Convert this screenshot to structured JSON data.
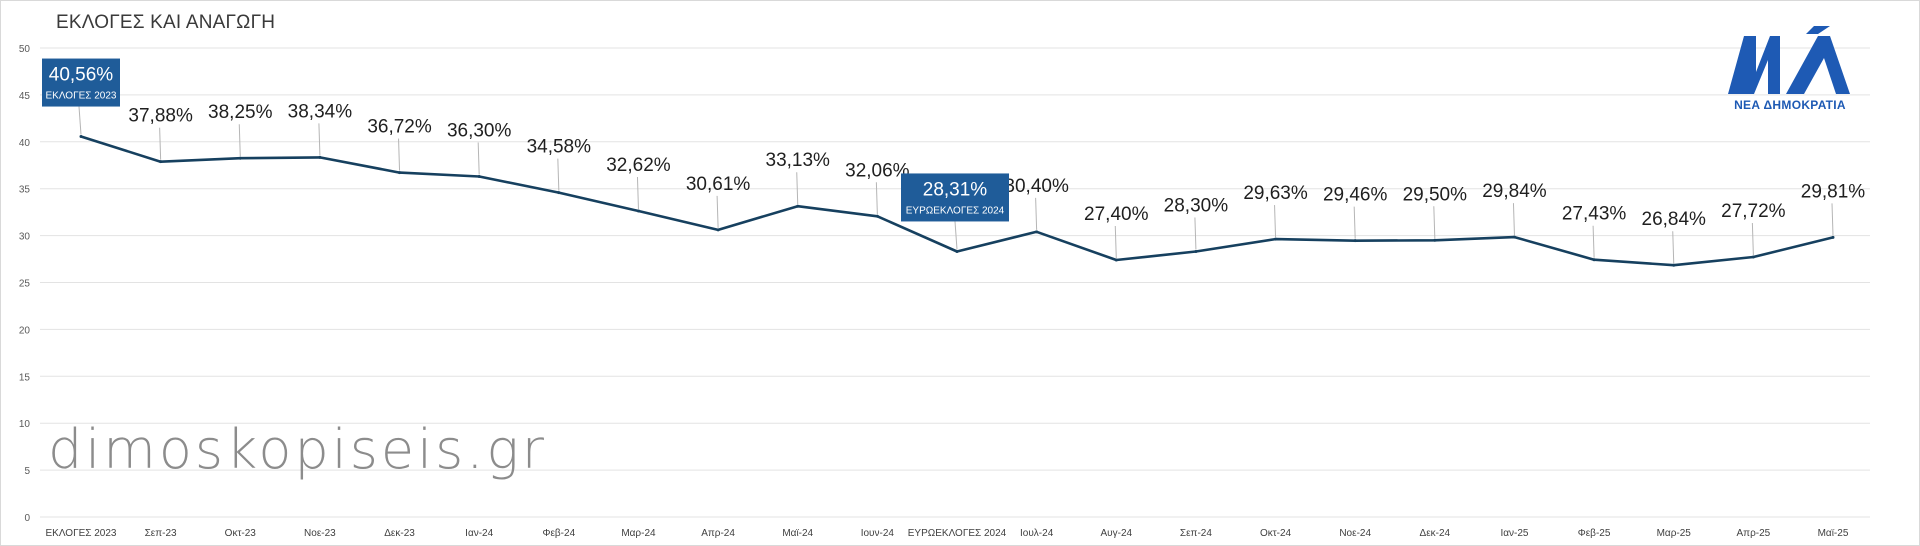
{
  "chart_data": {
    "type": "line",
    "title": "ΕΚΛΟΓΕΣ ΚΑΙ ΑΝΑΓΩΓΗ",
    "categories": [
      "ΕΚΛΟΓΕΣ 2023",
      "Σεπ-23",
      "Οκτ-23",
      "Νοε-23",
      "Δεκ-23",
      "Ιαν-24",
      "Φεβ-24",
      "Μαρ-24",
      "Απρ-24",
      "Μαϊ-24",
      "Ιουν-24",
      "ΕΥΡΩΕΚΛΟΓΕΣ 2024",
      "Ιουλ-24",
      "Αυγ-24",
      "Σεπ-24",
      "Οκτ-24",
      "Νοε-24",
      "Δεκ-24",
      "Ιαν-25",
      "Φεβ-25",
      "Μαρ-25",
      "Απρ-25",
      "Μαϊ-25"
    ],
    "series": [
      {
        "values": [
          40.56,
          37.88,
          38.25,
          38.34,
          36.72,
          36.3,
          34.58,
          32.62,
          30.61,
          33.13,
          32.06,
          28.31,
          30.4,
          27.4,
          28.3,
          29.63,
          29.46,
          29.5,
          29.84,
          27.43,
          26.84,
          27.72,
          29.81
        ],
        "labels": [
          "40,56%",
          "37,88%",
          "38,25%",
          "38,34%",
          "36,72%",
          "36,30%",
          "34,58%",
          "32,62%",
          "30,61%",
          "33,13%",
          "32,06%",
          "28,31%",
          "30,40%",
          "27,40%",
          "28,30%",
          "29,63%",
          "29,46%",
          "29,50%",
          "29,84%",
          "27,43%",
          "26,84%",
          "27,72%",
          "29,81%"
        ],
        "color": "#16405f"
      }
    ],
    "highlights": [
      {
        "index": 0,
        "value": "40,56%",
        "sub": "ΕΚΛΟΓΕΣ 2023"
      },
      {
        "index": 11,
        "value": "28,31%",
        "sub": "ΕΥΡΩΕΚΛΟΓΕΣ 2024"
      }
    ],
    "ylim": [
      0,
      50
    ],
    "yticks": [
      0,
      5,
      10,
      15,
      20,
      25,
      30,
      35,
      40,
      45,
      50
    ],
    "grid": true,
    "highlight_color": "#1f5c99"
  },
  "watermark": "dimoskopiseis.gr",
  "logo": {
    "mark": "ΝΔ",
    "caption": "ΝΕΑ ΔΗΜΟΚΡΑΤΙΑ",
    "color": "#1e5ab4"
  }
}
